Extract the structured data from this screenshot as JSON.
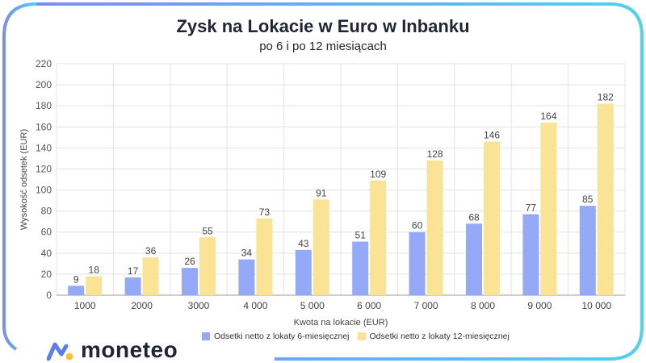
{
  "chart_data": {
    "type": "bar",
    "title": "Zysk na Lokacie w Euro w Inbanku",
    "subtitle": "po 6 i po 12 miesiącach",
    "xlabel": "Kwota na lokacie (EUR)",
    "ylabel": "Wysokość odsetek (EUR)",
    "categories": [
      "1000",
      "2000",
      "3000",
      "4 000",
      "5 000",
      "6 000",
      "7 000",
      "8 000",
      "9 000",
      "10 000"
    ],
    "series": [
      {
        "name": "Odsetki netto z lokaty 6-miesięcznej",
        "color": "#94a9f8",
        "values": [
          9,
          17,
          26,
          34,
          43,
          51,
          60,
          68,
          77,
          85
        ]
      },
      {
        "name": "Odsetki netto z lokaty 12-miesięcznej",
        "color": "#fae394",
        "values": [
          18,
          36,
          55,
          73,
          91,
          109,
          128,
          146,
          164,
          182
        ]
      }
    ],
    "ylim": [
      0,
      220
    ],
    "yticks": [
      0,
      20,
      40,
      60,
      80,
      100,
      120,
      140,
      160,
      180,
      200,
      220
    ],
    "grid": true,
    "legend": "bottom"
  },
  "brand": {
    "name": "moneteo",
    "frame_gradient": [
      "#7b8df5",
      "#4fd1f0"
    ]
  }
}
